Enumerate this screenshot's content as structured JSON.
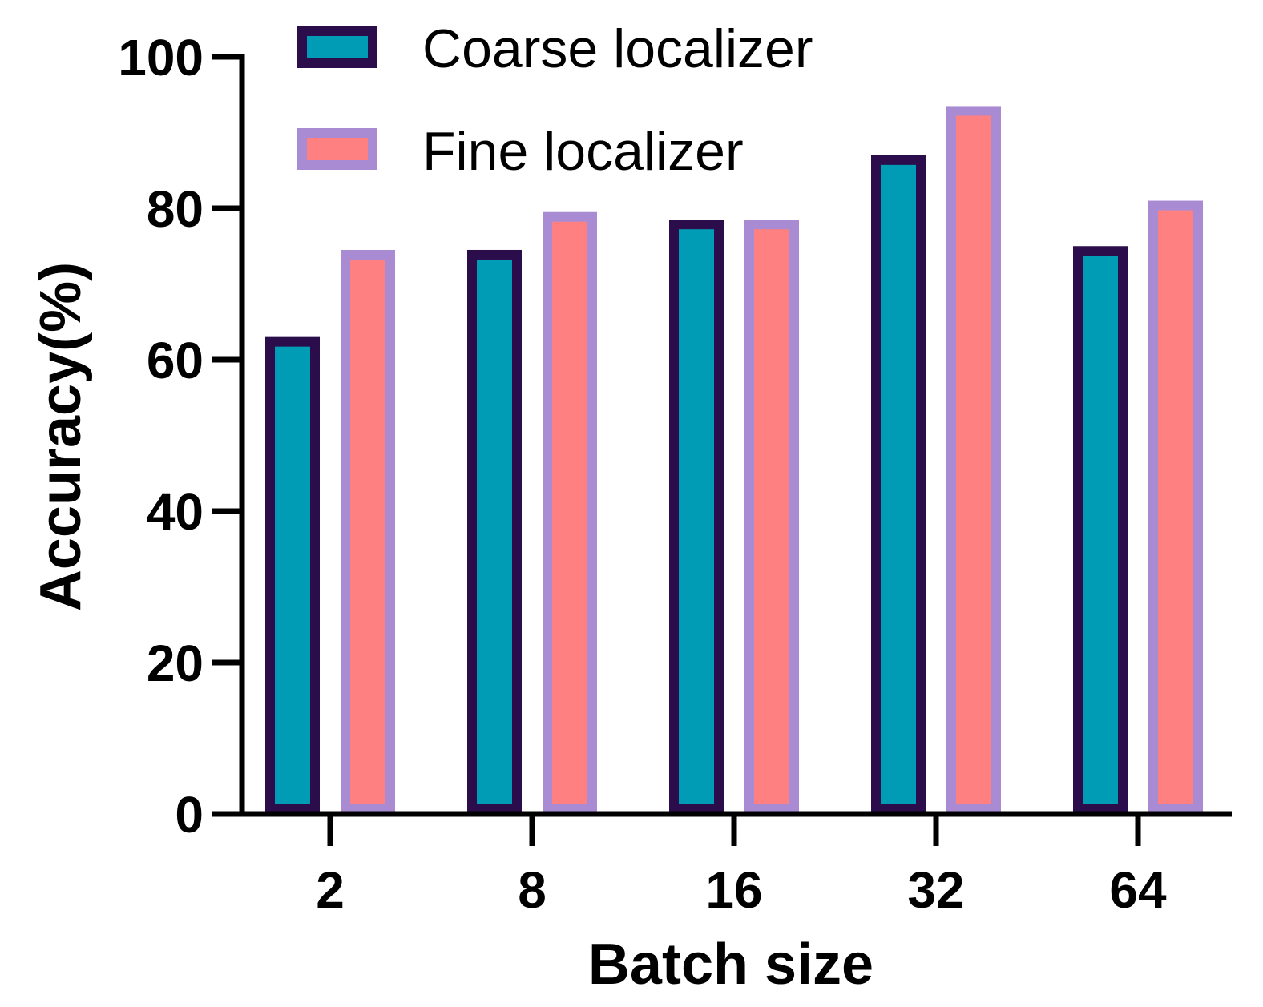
{
  "chart_data": {
    "type": "bar",
    "categories": [
      "2",
      "8",
      "16",
      "32",
      "64"
    ],
    "series": [
      {
        "name": "Coarse localizer",
        "values": [
          63,
          74.5,
          78.5,
          87,
          75
        ],
        "fill": "#009BB5",
        "stroke": "#2B0D4B"
      },
      {
        "name": "Fine localizer",
        "values": [
          74.5,
          79.5,
          78.5,
          93.5,
          81
        ],
        "fill": "#FF8080",
        "stroke": "#A98BD4"
      }
    ],
    "xlabel": "Batch size",
    "ylabel": "Accuracy(%)",
    "ylim": [
      0,
      100
    ],
    "yticks": [
      "0",
      "20",
      "40",
      "60",
      "80",
      "100"
    ],
    "grid": false,
    "legend_position": "top-left"
  }
}
